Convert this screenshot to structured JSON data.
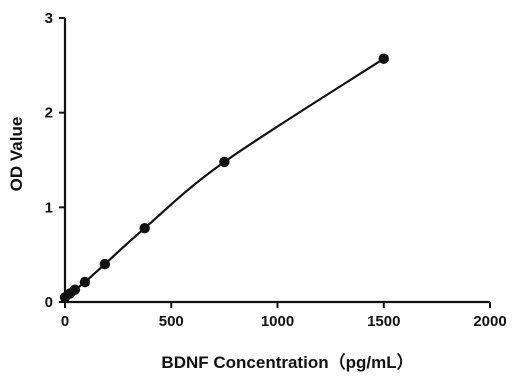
{
  "chart_data": {
    "type": "scatter",
    "title": "",
    "xlabel": "BDNF Concentration（pg/mL）",
    "ylabel": "OD Value",
    "xlim": [
      0,
      2000
    ],
    "ylim": [
      0,
      3
    ],
    "x_ticks": [
      0,
      500,
      1000,
      1500,
      2000
    ],
    "y_ticks": [
      0,
      1,
      2,
      3
    ],
    "grid": false,
    "legend": "none",
    "fit_line": true,
    "series": [
      {
        "x": [
          0,
          23.4,
          46.9,
          93.8,
          187.5,
          375,
          750,
          1500
        ],
        "y": [
          0.05,
          0.09,
          0.13,
          0.21,
          0.4,
          0.78,
          1.48,
          2.57
        ]
      }
    ],
    "colors": {
      "marker": "#111111",
      "line": "#111111"
    }
  }
}
